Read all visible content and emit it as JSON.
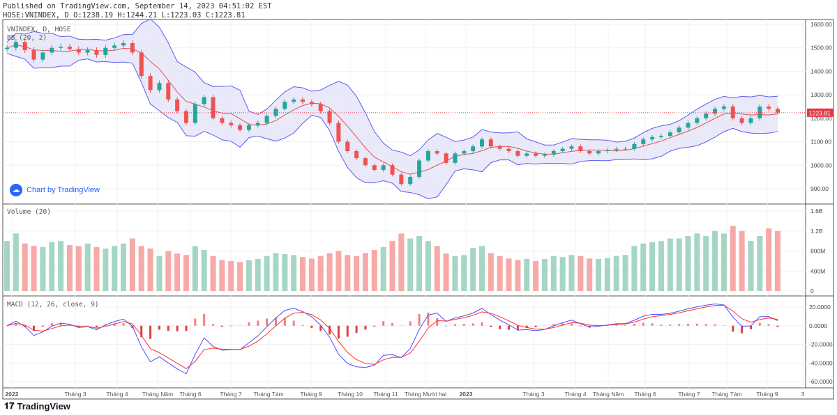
{
  "header": {
    "published": "Published on TradingView.com, September 14, 2023 04:51:02 EST",
    "ohlc": "HOSE:VNINDEX, D O:1238.19 H:1244.21 L:1223.03 C:1223.81"
  },
  "legends": {
    "main": "VNINDEX, D, HOSE",
    "bb": "BB (20, 2)",
    "volume": "Volume (20)",
    "macd": "MACD (12, 26, close, 9)"
  },
  "watermark": "Chart by TradingView",
  "logo": "TradingView",
  "colors": {
    "up": "#26a69a",
    "down": "#ef5350",
    "bb_band": "#5b5bf0",
    "bb_fill": "#e4e4f7",
    "basis": "#e05050",
    "macd": "#4d4dff",
    "signal": "#ff3030",
    "price_line": "#e53945"
  },
  "chart_data": {
    "type": "candlestick",
    "symbol": "VNINDEX",
    "last_price": "1223.81",
    "price_axis": {
      "range": [
        870,
        1620
      ],
      "ticks": [
        "1600.00",
        "1500.00",
        "1400.00",
        "1300.00",
        "1200.00",
        "1100.00",
        "1000.00",
        "900.00"
      ]
    },
    "volume_axis": {
      "range": [
        0,
        1.7
      ],
      "unit": "B",
      "ticks": [
        "1.6B",
        "1.2B",
        "800M",
        "400M",
        "0"
      ]
    },
    "macd_axis": {
      "range": [
        -70,
        26
      ],
      "ticks": [
        "20.0000",
        "0.0000",
        "-20.0000",
        "-40.0000",
        "-60.0000"
      ]
    },
    "x_ticks": [
      "2022",
      "Tháng 3",
      "Tháng 4",
      "Tháng Năm",
      "Tháng 6",
      "Tháng 7",
      "Tháng Tám",
      "Tháng 9",
      "Tháng 10",
      "Tháng 11",
      "Tháng Mười hai",
      "2023",
      "Tháng 3",
      "Tháng 4",
      "Tháng Năm",
      "Tháng 6",
      "Tháng 7",
      "Tháng Tám",
      "Tháng 9",
      "3"
    ],
    "closes": [
      1500,
      1525,
      1490,
      1450,
      1480,
      1500,
      1505,
      1495,
      1480,
      1490,
      1470,
      1500,
      1510,
      1520,
      1480,
      1380,
      1320,
      1350,
      1280,
      1230,
      1180,
      1260,
      1290,
      1200,
      1180,
      1170,
      1150,
      1170,
      1180,
      1210,
      1240,
      1270,
      1280,
      1270,
      1260,
      1230,
      1180,
      1100,
      1060,
      1030,
      1000,
      980,
      1000,
      960,
      920,
      950,
      1020,
      1060,
      1050,
      1010,
      1050,
      1060,
      1080,
      1110,
      1080,
      1070,
      1060,
      1040,
      1050,
      1040,
      1045,
      1060,
      1070,
      1080,
      1060,
      1050,
      1060,
      1065,
      1070,
      1070,
      1090,
      1110,
      1120,
      1125,
      1140,
      1160,
      1180,
      1200,
      1220,
      1240,
      1250,
      1200,
      1180,
      1200,
      1250,
      1240,
      1224
    ],
    "volumes_m": [
      1000,
      1150,
      950,
      900,
      880,
      980,
      1000,
      920,
      900,
      950,
      880,
      850,
      900,
      950,
      1050,
      900,
      850,
      700,
      800,
      750,
      720,
      900,
      820,
      700,
      620,
      600,
      580,
      620,
      640,
      700,
      760,
      740,
      720,
      680,
      650,
      700,
      760,
      800,
      720,
      700,
      760,
      820,
      880,
      1000,
      1150,
      1050,
      1100,
      1000,
      900,
      750,
      700,
      720,
      860,
      900,
      760,
      700,
      650,
      620,
      640,
      600,
      640,
      700,
      680,
      720,
      700,
      650,
      640,
      660,
      700,
      720,
      900,
      950,
      980,
      1000,
      1050,
      1050,
      1100,
      1150,
      1100,
      1200,
      1150,
      1300,
      1200,
      1000,
      1100,
      1250,
      1200
    ]
  }
}
